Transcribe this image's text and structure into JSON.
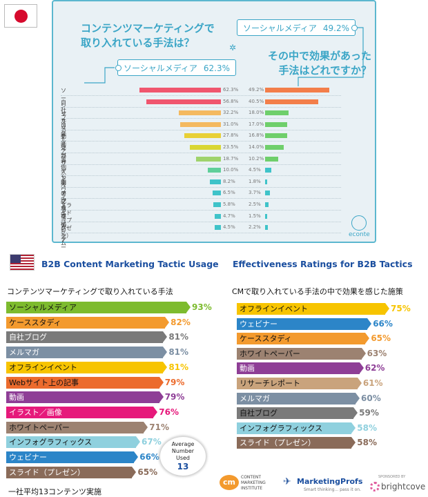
{
  "japan": {
    "question_left": [
      "コンテンツマーケティングで",
      "取り入れている手法は？"
    ],
    "question_right": [
      "その中で効果があった",
      "手法はどれですか？"
    ],
    "tag_left": {
      "label": "ソーシャルメディア",
      "value": "62.3%"
    },
    "tag_right": {
      "label": "ソーシャルメディア",
      "value": "49.2%"
    },
    "brand": "econte",
    "flag_colors": {
      "dot": "#d60a2d"
    }
  },
  "us": {
    "left_title": "B2B Content Marketing Tactic Usage",
    "left_subtitle": "コンテンツマーケティングで取り入れている手法",
    "right_title": "Effectiveness Ratings for B2B Tactics",
    "right_subtitle": "CMで取り入れている手法の中で効果を感じた施策",
    "avg": {
      "lines": [
        "Average",
        "Number",
        "Used"
      ],
      "value": "13"
    },
    "footnote": "一社平均13コンテンツ実施"
  },
  "logos": {
    "cmi": [
      "CONTENT",
      "MARKETING",
      "INSTITUTE"
    ],
    "cmi_mark": "cm",
    "marketingprofs": "MarketingProfs",
    "marketingprofs_tag": "Smart thinking... pass it on.",
    "sponsored": "SPONSORED BY",
    "brightcove": "brightcove"
  },
  "chart_data": [
    {
      "type": "bar",
      "title": "",
      "categories": [
        "ソーシャルメディア",
        "自社ブログ",
        "リサーチ",
        "メールマガジン",
        "動画",
        "外部サイトへの記事寄稿",
        "事例公開",
        "インフォグラフィック",
        "ホワイトペーパー",
        "アプリ",
        "スライド（プレゼン）",
        "ウェビナー",
        "ゲーム"
      ],
      "series": [
        {
          "values": [
            62.3,
            56.8,
            32.2,
            31.0,
            27.8,
            23.5,
            18.7,
            10.0,
            8.2,
            6.5,
            5.8,
            4.7,
            4.5
          ]
        },
        {
          "values": [
            49.2,
            40.5,
            18.0,
            17.0,
            16.8,
            14.0,
            10.2,
            4.5,
            1.8,
            3.7,
            2.5,
            1.5,
            2.2
          ]
        }
      ],
      "colors": [
        "#f0566e",
        "#f0566e",
        "#f4b95f",
        "#f4b95f",
        "#e8d036",
        "#d9d633",
        "#9fd36c",
        "#5fcf9a",
        "#3fc3c9",
        "#3fc3c9",
        "#3fc3c9",
        "#3fc3c9",
        "#3fc3c9"
      ],
      "right_color": [
        "#f37e4a",
        "#f37e4a",
        "#6fcf6b",
        "#6fcf6b",
        "#6fcf6b",
        "#6fcf6b",
        "#6fcf6b",
        "#3fc3c9",
        "#3fc3c9",
        "#3fc3c9",
        "#3fc3c9",
        "#3fc3c9",
        "#3fc3c9"
      ]
    },
    {
      "type": "bar",
      "title": "B2B Content Marketing Tactic Usage",
      "categories": [
        "ソーシャルメディア",
        "ケーススタディ",
        "自社ブログ",
        "メルマガ",
        "オフラインイベント",
        "Webサイト上の記事",
        "動画",
        "イラスト／画像",
        "ホワイトペーパー",
        "インフォグラフィックス",
        "ウェビナー",
        "スライド（プレゼン）"
      ],
      "values": [
        93,
        82,
        81,
        81,
        81,
        79,
        79,
        76,
        71,
        67,
        66,
        65
      ],
      "labels": [
        "93%",
        "82%",
        "81%",
        "81%",
        "81%",
        "79%",
        "79%",
        "76%",
        "71%",
        "67%",
        "66%",
        "65%"
      ],
      "colors": [
        "#7dbb2e",
        "#f39a2e",
        "#7a7a7a",
        "#7c8fa3",
        "#f7c400",
        "#ec6b2d",
        "#8e3e96",
        "#e6197b",
        "#9c8271",
        "#8fd0de",
        "#2c85c8",
        "#8a6b59"
      ],
      "text_colors": [
        "#111",
        "#111",
        "#fff",
        "#fff",
        "#111",
        "#111",
        "#fff",
        "#fff",
        "#111",
        "#111",
        "#fff",
        "#fff"
      ],
      "value_colors": [
        "#7dbb2e",
        "#f39a2e",
        "#7a7a7a",
        "#7c8fa3",
        "#f7c400",
        "#ec6b2d",
        "#8e3e96",
        "#e6197b",
        "#9c8271",
        "#8fd0de",
        "#2c85c8",
        "#8a6b59"
      ]
    },
    {
      "type": "bar",
      "title": "Effectiveness Ratings for B2B Tactics",
      "categories": [
        "オフラインイベント",
        "ウェビナー",
        "ケーススタディ",
        "ホワイトペーパー",
        "動画",
        "リサーチレポート",
        "メルマガ",
        "自社ブログ",
        "インフォグラフィックス",
        "スライド（プレゼン）"
      ],
      "values": [
        75,
        66,
        65,
        63,
        62,
        61,
        60,
        59,
        58,
        58
      ],
      "labels": [
        "75%",
        "66%",
        "65%",
        "63%",
        "62%",
        "61%",
        "60%",
        "59%",
        "58%",
        "58%"
      ],
      "colors": [
        "#f7c400",
        "#2c85c8",
        "#f39a2e",
        "#9c8271",
        "#8e3e96",
        "#c9a37c",
        "#7c8fa3",
        "#7a7a7a",
        "#8fd0de",
        "#8a6b59"
      ],
      "text_colors": [
        "#111",
        "#fff",
        "#111",
        "#111",
        "#fff",
        "#111",
        "#fff",
        "#111",
        "#111",
        "#fff"
      ],
      "value_colors": [
        "#f7c400",
        "#2c85c8",
        "#f39a2e",
        "#9c8271",
        "#8e3e96",
        "#c9a37c",
        "#7c8fa3",
        "#7a7a7a",
        "#8fd0de",
        "#8a6b59"
      ]
    }
  ]
}
